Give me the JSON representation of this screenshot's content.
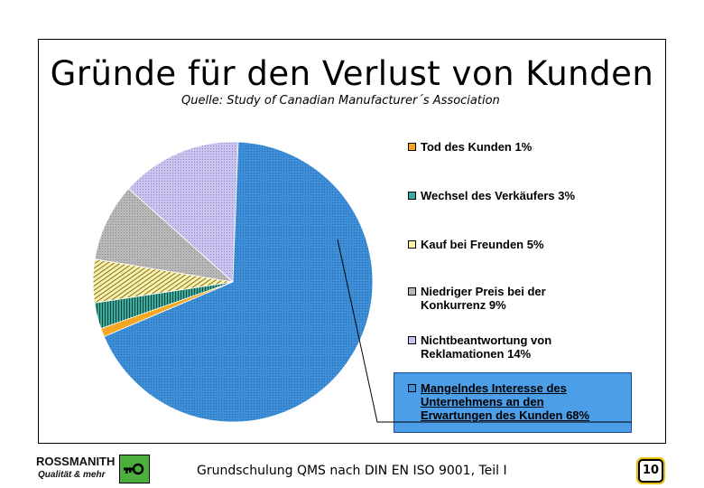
{
  "slide": {
    "title": "Gründe für den Verlust von Kunden",
    "subtitle": "Quelle: Study of Canadian Manufacturer´s Association",
    "footer": "Grundschulung QMS nach DIN EN ISO 9001, Teil I",
    "page_number": "10"
  },
  "logo": {
    "name": "ROSSMANITH",
    "tagline": "Qualität & mehr",
    "icon": "key-icon"
  },
  "chart_data": {
    "type": "pie",
    "title": "Gründe für den Verlust von Kunden",
    "subtitle": "Quelle: Study of Canadian Manufacturer´s Association",
    "legend_position": "right",
    "highlighted": "Mangelndes Interesse des Unternehmens an den Erwartungen des Kunden 68%",
    "slices": [
      {
        "label": "Tod des Kunden 1%",
        "value": 1,
        "color": "#f5a623",
        "pattern": "solid"
      },
      {
        "label": "Wechsel des Verkäufers 3%",
        "value": 3,
        "color": "#3aaa9a",
        "pattern": "vertical"
      },
      {
        "label": "Kauf bei Freunden 5%",
        "value": 5,
        "color": "#fff3a0",
        "pattern": "horizontal"
      },
      {
        "label": "Niedriger Preis bei der\nKonkurrenz 9%",
        "value": 9,
        "color": "#b8b8b8",
        "pattern": "dots"
      },
      {
        "label": "Nichtbeantwortung von\nReklamationen 14%",
        "value": 14,
        "color": "#c9c4f2",
        "pattern": "dots"
      },
      {
        "label": "Mangelndes Interesse des\nUnternehmens an den\nErwartungen des Kunden 68%",
        "value": 68,
        "color": "#3c8fd8",
        "pattern": "dots"
      }
    ]
  }
}
